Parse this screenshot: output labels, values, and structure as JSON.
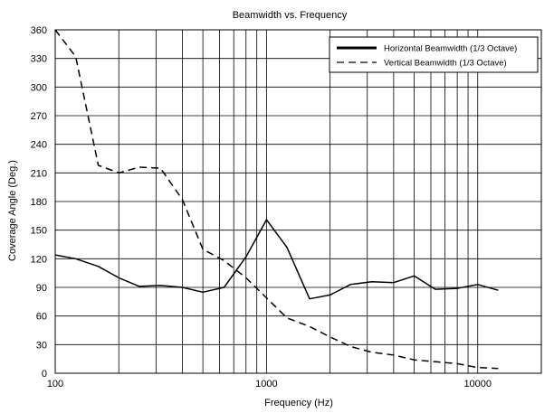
{
  "chart_data": {
    "type": "line",
    "title": "Beamwidth vs. Frequency",
    "xlabel": "Frequency (Hz)",
    "ylabel": "Coverage Angle (Deg.)",
    "xscale": "log",
    "xlim": [
      100,
      20000
    ],
    "ylim": [
      0,
      360
    ],
    "x_ticks": [
      100,
      1000,
      10000
    ],
    "x_tick_labels": [
      "100",
      "1000",
      "10000"
    ],
    "y_ticks": [
      0,
      30,
      60,
      90,
      120,
      150,
      180,
      210,
      240,
      270,
      300,
      330,
      360
    ],
    "y_tick_labels": [
      "0",
      "30",
      "60",
      "90",
      "120",
      "150",
      "180",
      "210",
      "240",
      "270",
      "300",
      "330",
      "360"
    ],
    "grid": true,
    "legend_position": "top-right",
    "x": [
      100,
      125,
      160,
      200,
      250,
      315,
      400,
      500,
      630,
      800,
      1000,
      1250,
      1600,
      2000,
      2500,
      3150,
      4000,
      5000,
      6300,
      8000,
      10000,
      12500
    ],
    "series": [
      {
        "name": "Horizontal Beamwidth (1/3 Octave)",
        "style": "solid",
        "color": "#000000",
        "values": [
          124,
          120,
          112,
          100,
          91,
          92,
          90,
          85,
          90,
          122,
          161,
          132,
          78,
          82,
          93,
          96,
          95,
          102,
          88,
          89,
          93,
          87
        ]
      },
      {
        "name": "Vertical Beamwidth (1/3 Octave)",
        "style": "dashed",
        "color": "#000000",
        "values": [
          360,
          332,
          218,
          210,
          216,
          215,
          182,
          130,
          118,
          100,
          79,
          58,
          49,
          38,
          28,
          22,
          19,
          14,
          12,
          10,
          6,
          5
        ]
      }
    ]
  }
}
